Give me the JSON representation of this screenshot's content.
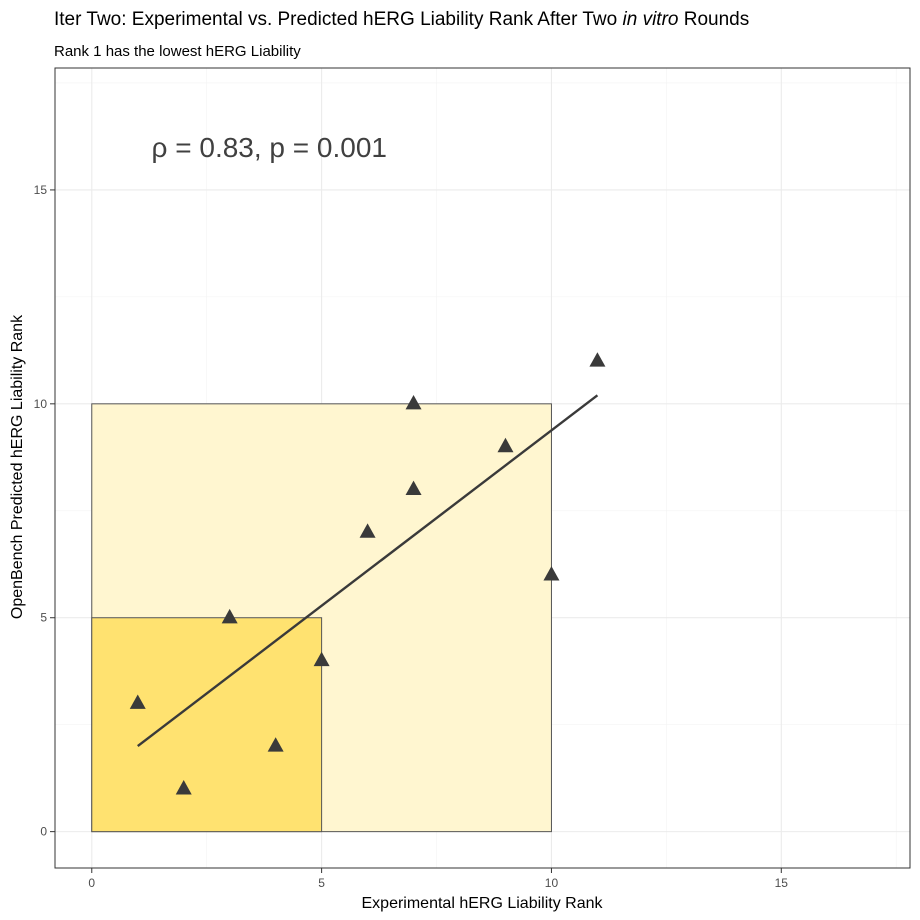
{
  "chart_data": {
    "type": "scatter",
    "title_parts": [
      "Iter Two: Experimental vs. Predicted hERG Liability Rank After Two ",
      "in vitro",
      " Rounds"
    ],
    "subtitle": "Rank 1 has the lowest hERG Liability",
    "xlabel": "Experimental hERG Liability Rank",
    "ylabel": "OpenBench Predicted hERG Liability Rank",
    "xlim": [
      -0.8,
      17.8
    ],
    "ylim": [
      -0.85,
      17.85
    ],
    "x_ticks": [
      0,
      5,
      10,
      15
    ],
    "y_ticks": [
      0,
      5,
      10,
      15
    ],
    "x_tick_labels": [
      "0",
      "5",
      "10",
      "15"
    ],
    "y_tick_labels": [
      "0",
      "5",
      "10",
      "15"
    ],
    "grid": true,
    "points": [
      {
        "x": 1,
        "y": 3
      },
      {
        "x": 2,
        "y": 1
      },
      {
        "x": 3,
        "y": 5
      },
      {
        "x": 4,
        "y": 2
      },
      {
        "x": 5,
        "y": 4
      },
      {
        "x": 6,
        "y": 7
      },
      {
        "x": 7,
        "y": 10
      },
      {
        "x": 7,
        "y": 8
      },
      {
        "x": 9,
        "y": 9
      },
      {
        "x": 10,
        "y": 6
      },
      {
        "x": 11,
        "y": 11
      }
    ],
    "marker": "triangle",
    "marker_color": "#3a3a3a",
    "regression_line": {
      "x1": 1,
      "y1": 2.0,
      "x2": 11,
      "y2": 10.2,
      "color": "#3a3a3a"
    },
    "regions": [
      {
        "x0": 0,
        "y0": 0,
        "x1": 10,
        "y1": 10,
        "fill": "#fff6d0",
        "stroke": "#555555"
      },
      {
        "x0": 0,
        "y0": 0,
        "x1": 5,
        "y1": 5,
        "fill": "#ffe270",
        "stroke": "#555555"
      }
    ],
    "annotation": {
      "text": "ρ = 0.83, p = 0.001",
      "x": 1.3,
      "y": 16
    }
  }
}
